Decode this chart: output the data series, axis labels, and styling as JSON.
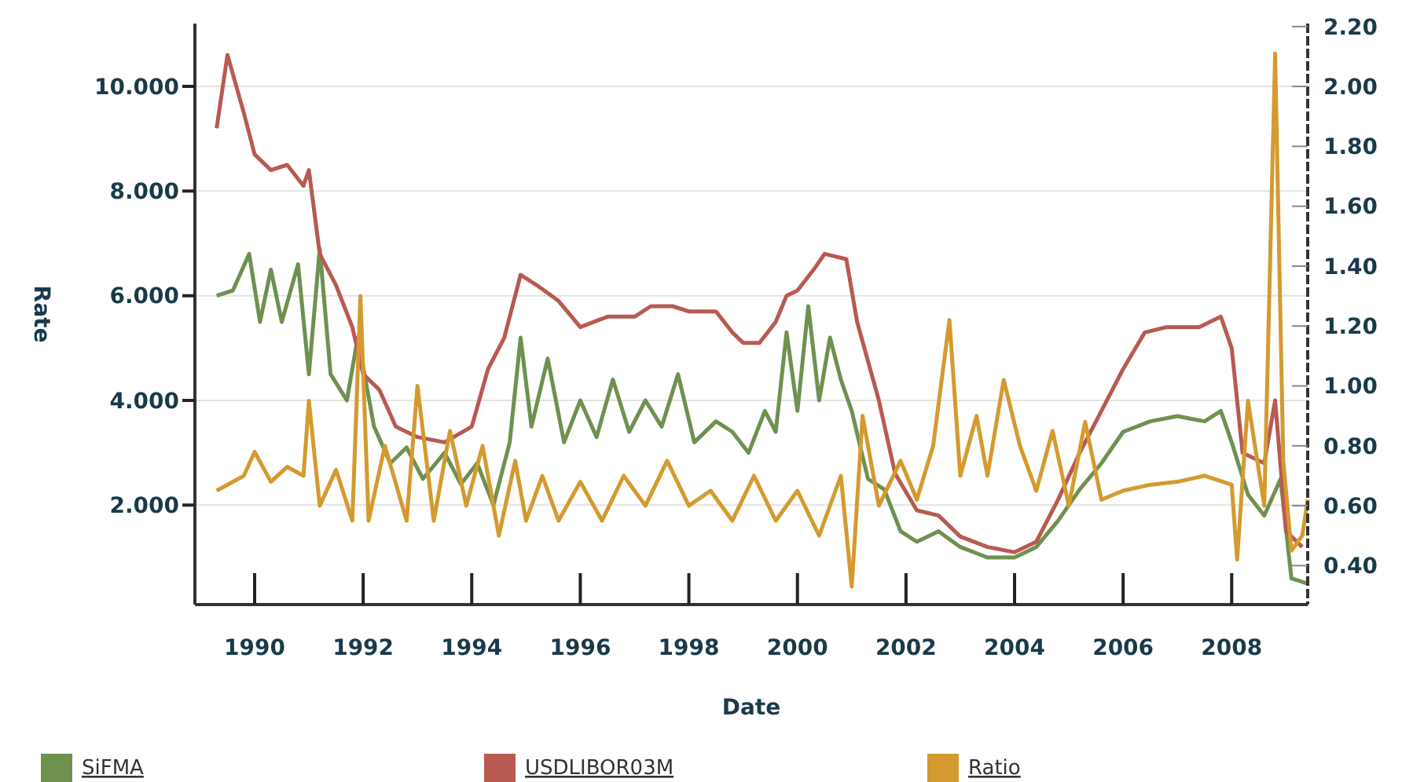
{
  "chart_data": {
    "type": "line",
    "xlabel": "Date",
    "ylabel": "Rate",
    "xlim": [
      1988.9,
      2009.4
    ],
    "xticks": [
      1990,
      1992,
      1994,
      1996,
      1998,
      2000,
      2002,
      2004,
      2006,
      2008
    ],
    "ylim": [
      0.1,
      11.2
    ],
    "yticks": [
      {
        "value": 2,
        "label": "2.000"
      },
      {
        "value": 4,
        "label": "4.000"
      },
      {
        "value": 6,
        "label": "6.000"
      },
      {
        "value": 8,
        "label": "8.000"
      },
      {
        "value": 10,
        "label": "10.000"
      }
    ],
    "y2lim": [
      0.27,
      2.21
    ],
    "y2ticks": [
      {
        "value": 0.4,
        "label": "0.40"
      },
      {
        "value": 0.6,
        "label": "0.60"
      },
      {
        "value": 0.8,
        "label": "0.80"
      },
      {
        "value": 1.0,
        "label": "1.00"
      },
      {
        "value": 1.2,
        "label": "1.20"
      },
      {
        "value": 1.4,
        "label": "1.40"
      },
      {
        "value": 1.6,
        "label": "1.60"
      },
      {
        "value": 1.8,
        "label": "1.80"
      },
      {
        "value": 2.0,
        "label": "2.00"
      },
      {
        "value": 2.2,
        "label": "2.20"
      }
    ],
    "grid": "y",
    "legend": "bottom",
    "marker": "none",
    "line_style": "solid",
    "series": [
      {
        "name": "SiFMA",
        "color": "#6f9150",
        "x": [
          1989.3,
          1989.6,
          1989.9,
          1990.1,
          1990.3,
          1990.5,
          1990.8,
          1991.0,
          1991.2,
          1991.4,
          1991.7,
          1991.9,
          1992.2,
          1992.5,
          1992.8,
          1993.1,
          1993.5,
          1993.8,
          1994.1,
          1994.4,
          1994.7,
          1994.9,
          1995.1,
          1995.4,
          1995.7,
          1996.0,
          1996.3,
          1996.6,
          1996.9,
          1997.2,
          1997.5,
          1997.8,
          1998.1,
          1998.5,
          1998.8,
          1999.1,
          1999.4,
          1999.6,
          1999.8,
          2000.0,
          2000.2,
          2000.4,
          2000.6,
          2000.8,
          2001.0,
          2001.3,
          2001.6,
          2001.9,
          2002.2,
          2002.6,
          2003.0,
          2003.5,
          2004.0,
          2004.4,
          2004.8,
          2005.2,
          2005.6,
          2006.0,
          2006.5,
          2007.0,
          2007.5,
          2007.8,
          2008.0,
          2008.3,
          2008.6,
          2008.9,
          2009.1,
          2009.4
        ],
        "values": [
          6.0,
          6.1,
          6.8,
          5.5,
          6.5,
          5.5,
          6.6,
          4.5,
          6.9,
          4.5,
          4.0,
          5.2,
          3.5,
          2.8,
          3.1,
          2.5,
          3.0,
          2.4,
          2.8,
          2.0,
          3.2,
          5.2,
          3.5,
          4.8,
          3.2,
          4.0,
          3.3,
          4.4,
          3.4,
          4.0,
          3.5,
          4.5,
          3.2,
          3.6,
          3.4,
          3.0,
          3.8,
          3.4,
          5.3,
          3.8,
          5.8,
          4.0,
          5.2,
          4.4,
          3.8,
          2.5,
          2.3,
          1.5,
          1.3,
          1.5,
          1.2,
          1.0,
          1.0,
          1.2,
          1.7,
          2.3,
          2.8,
          3.4,
          3.6,
          3.7,
          3.6,
          3.8,
          3.2,
          2.2,
          1.8,
          2.5,
          0.6,
          0.5
        ]
      },
      {
        "name": "USDLIBOR03M",
        "color": "#b85a50",
        "x": [
          1989.3,
          1989.5,
          1989.8,
          1990.0,
          1990.3,
          1990.6,
          1990.9,
          1991.0,
          1991.2,
          1991.5,
          1991.8,
          1992.0,
          1992.3,
          1992.6,
          1993.0,
          1993.5,
          1994.0,
          1994.3,
          1994.6,
          1994.9,
          1995.2,
          1995.6,
          1996.0,
          1996.5,
          1997.0,
          1997.3,
          1997.7,
          1998.0,
          1998.5,
          1998.8,
          1999.0,
          1999.3,
          1999.6,
          1999.8,
          2000.0,
          2000.3,
          2000.5,
          2000.9,
          2001.1,
          2001.5,
          2001.8,
          2002.2,
          2002.6,
          2003.0,
          2003.5,
          2004.0,
          2004.4,
          2004.8,
          2005.2,
          2005.6,
          2006.0,
          2006.4,
          2006.8,
          2007.4,
          2007.8,
          2008.0,
          2008.2,
          2008.6,
          2008.8,
          2009.0,
          2009.3
        ],
        "values": [
          9.2,
          10.6,
          9.5,
          8.7,
          8.4,
          8.5,
          8.1,
          8.4,
          6.8,
          6.2,
          5.4,
          4.5,
          4.2,
          3.5,
          3.3,
          3.2,
          3.5,
          4.6,
          5.2,
          6.4,
          6.2,
          5.9,
          5.4,
          5.6,
          5.6,
          5.8,
          5.8,
          5.7,
          5.7,
          5.3,
          5.1,
          5.1,
          5.5,
          6.0,
          6.1,
          6.5,
          6.8,
          6.7,
          5.5,
          4.0,
          2.6,
          1.9,
          1.8,
          1.4,
          1.2,
          1.1,
          1.3,
          2.1,
          3.0,
          3.8,
          4.6,
          5.3,
          5.4,
          5.4,
          5.6,
          5.0,
          3.0,
          2.8,
          4.0,
          1.5,
          1.2
        ]
      },
      {
        "name": "Ratio",
        "color": "#d49a30",
        "axis": "y2",
        "x": [
          1989.3,
          1989.8,
          1990.0,
          1990.3,
          1990.6,
          1990.9,
          1991.0,
          1991.2,
          1991.5,
          1991.8,
          1991.95,
          1992.1,
          1992.4,
          1992.8,
          1993.0,
          1993.3,
          1993.6,
          1993.9,
          1994.2,
          1994.5,
          1994.8,
          1995.0,
          1995.3,
          1995.6,
          1996.0,
          1996.4,
          1996.8,
          1997.2,
          1997.6,
          1998.0,
          1998.4,
          1998.8,
          1999.2,
          1999.6,
          2000.0,
          2000.4,
          2000.8,
          2001.0,
          2001.2,
          2001.5,
          2001.9,
          2002.2,
          2002.5,
          2002.8,
          2003.0,
          2003.3,
          2003.5,
          2003.8,
          2004.1,
          2004.4,
          2004.7,
          2005.0,
          2005.3,
          2005.6,
          2006.0,
          2006.5,
          2007.0,
          2007.5,
          2008.0,
          2008.1,
          2008.3,
          2008.6,
          2008.8,
          2008.95,
          2009.1,
          2009.3,
          2009.4
        ],
        "values": [
          0.65,
          0.7,
          0.78,
          0.68,
          0.73,
          0.7,
          0.95,
          0.6,
          0.72,
          0.55,
          1.3,
          0.55,
          0.8,
          0.55,
          1.0,
          0.55,
          0.85,
          0.6,
          0.8,
          0.5,
          0.75,
          0.55,
          0.7,
          0.55,
          0.68,
          0.55,
          0.7,
          0.6,
          0.75,
          0.6,
          0.65,
          0.55,
          0.7,
          0.55,
          0.65,
          0.5,
          0.7,
          0.33,
          0.9,
          0.6,
          0.75,
          0.62,
          0.8,
          1.22,
          0.7,
          0.9,
          0.7,
          1.02,
          0.8,
          0.65,
          0.85,
          0.6,
          0.88,
          0.62,
          0.65,
          0.67,
          0.68,
          0.7,
          0.67,
          0.42,
          0.95,
          0.6,
          2.11,
          0.75,
          0.45,
          0.5,
          0.62
        ]
      }
    ]
  }
}
